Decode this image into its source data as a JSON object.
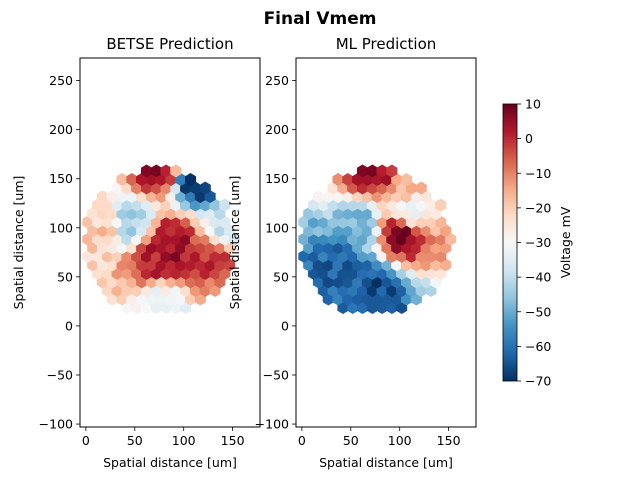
{
  "chart_data": {
    "suptitle": "Final Vmem",
    "panels": [
      {
        "type": "heatmap",
        "title": "BETSE Prediction",
        "xlabel": "Spatial distance [um]",
        "ylabel": "Spatial distance [um]",
        "xlim": [
          -6,
          178
        ],
        "ylim": [
          -103,
          273
        ],
        "xticks": [
          "0",
          "50",
          "100",
          "150"
        ],
        "yticks": [
          "−100",
          "−50",
          "0",
          "50",
          "100",
          "150",
          "200",
          "250"
        ],
        "xtick_values": [
          0,
          50,
          100,
          150
        ],
        "ytick_values": [
          -100,
          -50,
          0,
          50,
          100,
          150,
          200,
          250
        ],
        "tissue_center_um": [
          75,
          85
        ],
        "tissue_radius_um": [
          78,
          75
        ],
        "description_points_mV": [
          {
            "x": 75,
            "y": 158,
            "v": 5
          },
          {
            "x": 112,
            "y": 150,
            "v": -70
          },
          {
            "x": 90,
            "y": 85,
            "v": 5
          },
          {
            "x": 70,
            "y": 70,
            "v": 2
          },
          {
            "x": 45,
            "y": 105,
            "v": -45
          },
          {
            "x": 20,
            "y": 100,
            "v": -20
          },
          {
            "x": 130,
            "y": 75,
            "v": 0
          },
          {
            "x": 140,
            "y": 95,
            "v": -40
          },
          {
            "x": 75,
            "y": 20,
            "v": -33
          }
        ]
      },
      {
        "type": "heatmap",
        "title": "ML Prediction",
        "xlabel": "Spatial distance [um]",
        "ylabel": "Spatial distance [um]",
        "xlim": [
          -6,
          178
        ],
        "ylim": [
          -103,
          273
        ],
        "xticks": [
          "0",
          "50",
          "100",
          "150"
        ],
        "yticks": [
          "−100",
          "−50",
          "0",
          "50",
          "100",
          "150",
          "200",
          "250"
        ],
        "xtick_values": [
          0,
          50,
          100,
          150
        ],
        "ytick_values": [
          -100,
          -50,
          0,
          50,
          100,
          150,
          200,
          250
        ],
        "tissue_center_um": [
          75,
          85
        ],
        "tissue_radius_um": [
          78,
          75
        ],
        "description_points_mV": [
          {
            "x": 75,
            "y": 158,
            "v": 5
          },
          {
            "x": 100,
            "y": 95,
            "v": 10
          },
          {
            "x": 110,
            "y": 150,
            "v": -15
          },
          {
            "x": 110,
            "y": 115,
            "v": -30
          },
          {
            "x": 60,
            "y": 100,
            "v": -50
          },
          {
            "x": 75,
            "y": 40,
            "v": -65
          },
          {
            "x": 40,
            "y": 60,
            "v": -62
          }
        ]
      }
    ],
    "colorbar": {
      "label": "Voltage mV",
      "vmin": -70,
      "vmax": 10,
      "ticks": [
        "10",
        "0",
        "−10",
        "−20",
        "−30",
        "−40",
        "−50",
        "−60",
        "−70"
      ],
      "tick_values": [
        10,
        0,
        -10,
        -20,
        -30,
        -40,
        -50,
        -60,
        -70
      ],
      "colormap": "RdBu_r"
    }
  }
}
